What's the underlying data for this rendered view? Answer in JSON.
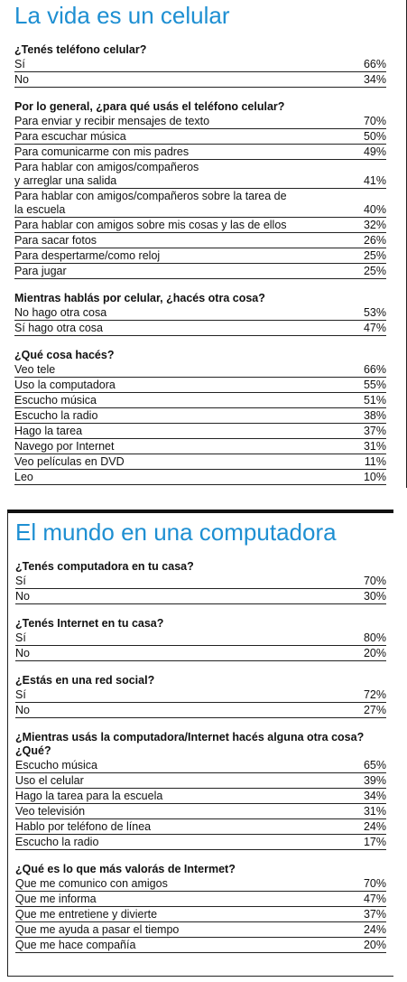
{
  "sections": [
    {
      "title": "La vida es un celular",
      "groups": [
        {
          "question": "¿Tenés teléfono celular?",
          "rows": [
            {
              "label": "Sí",
              "value": "66%"
            },
            {
              "label": "No",
              "value": "34%"
            }
          ]
        },
        {
          "question": "Por lo general, ¿para qué usás el teléfono celular?",
          "rows": [
            {
              "label": "Para enviar y recibir mensajes de texto",
              "value": "70%"
            },
            {
              "label": "Para escuchar música",
              "value": "50%"
            },
            {
              "label": "Para comunicarme con mis padres",
              "value": "49%"
            },
            {
              "label": "Para hablar con amigos/compañeros\ny arreglar una salida",
              "value": "41%"
            },
            {
              "label": "Para hablar con amigos/compañeros sobre la tarea de\nla escuela",
              "value": "40%"
            },
            {
              "label": "Para hablar con amigos sobre mis cosas y las de ellos",
              "value": "32%"
            },
            {
              "label": "Para sacar fotos",
              "value": "26%"
            },
            {
              "label": "Para despertarme/como reloj",
              "value": "25%"
            },
            {
              "label": "Para jugar",
              "value": "25%"
            }
          ]
        },
        {
          "question": "Mientras hablás por celular, ¿hacés otra cosa?",
          "rows": [
            {
              "label": "No hago otra cosa",
              "value": "53%"
            },
            {
              "label": "Sí hago otra cosa",
              "value": "47%"
            }
          ]
        },
        {
          "question": "¿Qué cosa hacés?",
          "rows": [
            {
              "label": "Veo tele",
              "value": "66%"
            },
            {
              "label": "Uso la computadora",
              "value": "55%"
            },
            {
              "label": "Escucho música",
              "value": "51%"
            },
            {
              "label": "Escucho la radio",
              "value": "38%"
            },
            {
              "label": "Hago la tarea",
              "value": "37%"
            },
            {
              "label": "Navego por Internet",
              "value": "31%"
            },
            {
              "label": "Veo películas en DVD",
              "value": "11%"
            },
            {
              "label": "Leo",
              "value": "10%"
            }
          ]
        }
      ]
    },
    {
      "title": "El mundo en una computadora",
      "groups": [
        {
          "question": "¿Tenés computadora en tu casa?",
          "rows": [
            {
              "label": "Sí",
              "value": "70%"
            },
            {
              "label": "No",
              "value": "30%"
            }
          ]
        },
        {
          "question": "¿Tenés Internet en tu casa?",
          "rows": [
            {
              "label": "Sí",
              "value": "80%"
            },
            {
              "label": "No",
              "value": "20%"
            }
          ]
        },
        {
          "question": "¿Estás en una red social?",
          "rows": [
            {
              "label": "Sí",
              "value": "72%"
            },
            {
              "label": "No",
              "value": "27%"
            }
          ]
        },
        {
          "question": "¿Mientras usás la computadora/Internet hacés alguna otra cosa? ¿Qué?",
          "rows": [
            {
              "label": "Escucho música",
              "value": "65%"
            },
            {
              "label": "Uso el celular",
              "value": "39%"
            },
            {
              "label": "Hago la tarea para la escuela",
              "value": "34%"
            },
            {
              "label": "Veo televisión",
              "value": "31%"
            },
            {
              "label": "Hablo por teléfono de línea",
              "value": "24%"
            },
            {
              "label": "Escucho la radio",
              "value": "17%"
            }
          ]
        },
        {
          "question": "¿Qué es lo que más valorás de Intermet?",
          "rows": [
            {
              "label": "Que me comunico con amigos",
              "value": "70%"
            },
            {
              "label": "Que me informa",
              "value": "47%"
            },
            {
              "label": "Que me entretiene y divierte",
              "value": "37%"
            },
            {
              "label": "Que me ayuda a pasar el tiempo",
              "value": "24%"
            },
            {
              "label": "Que me hace compañía",
              "value": "20%"
            }
          ]
        }
      ]
    }
  ]
}
